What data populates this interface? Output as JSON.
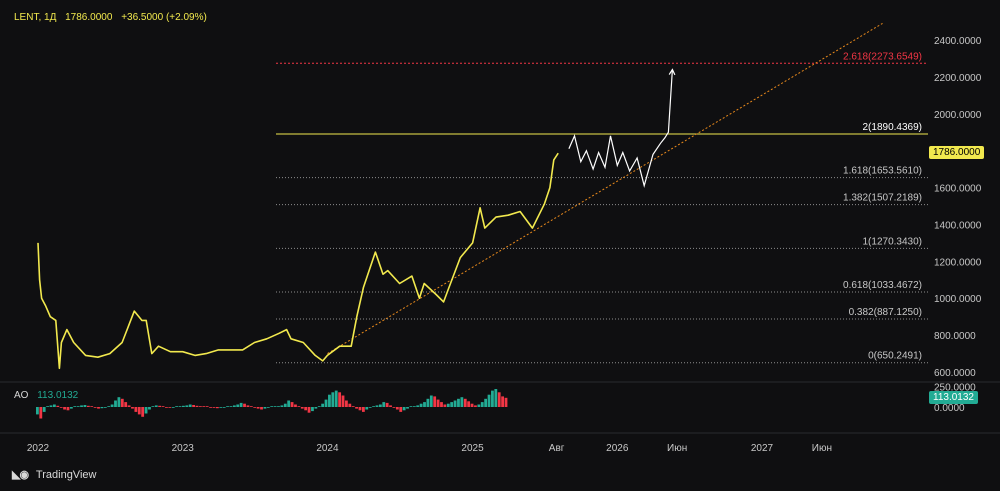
{
  "legend": {
    "symbol": "LENT, 1Д",
    "last": "1786.0000",
    "change": "+36.5000 (+2.09%)"
  },
  "price_tag": {
    "value": "1786.0000",
    "bg": "#f2e94e",
    "fg": "#000000"
  },
  "ao": {
    "name": "AO",
    "value": "113.0132",
    "tag_bg": "#22ab94",
    "up_color": "#22ab94",
    "down_color": "#f23645"
  },
  "branding": {
    "text": "TradingView"
  },
  "colors": {
    "price_line": "#f2e94e",
    "projection": "#ffffff",
    "trend": "#e8891c",
    "fib_line": "#8d8d8d",
    "fib_top": "#f23645",
    "fib_2": "#f2e94e"
  },
  "chart_data": [
    {
      "type": "line",
      "title": "LENT, 1Д",
      "y_axis": {
        "ticks": [
          "2400.0000",
          "2200.0000",
          "2000.0000",
          "1800.0000",
          "1600.0000",
          "1400.0000",
          "1200.0000",
          "1000.0000",
          "800.0000",
          "600.0000"
        ],
        "range": [
          600,
          2400
        ]
      },
      "x_axis": {
        "ticks": [
          "2022",
          "2023",
          "2024",
          "2025",
          "Авг",
          "2026",
          "Июн",
          "2027",
          "Июн"
        ]
      },
      "series": [
        {
          "values": [
            [
              "2022-01-01",
              1300
            ],
            [
              "2022-01-05",
              1100
            ],
            [
              "2022-01-10",
              1000
            ],
            [
              "2022-01-20",
              960
            ],
            [
              "2022-02-01",
              900
            ],
            [
              "2022-02-15",
              880
            ],
            [
              "2022-02-24",
              620
            ],
            [
              "2022-03-01",
              760
            ],
            [
              "2022-03-15",
              830
            ],
            [
              "2022-04-01",
              760
            ],
            [
              "2022-05-01",
              690
            ],
            [
              "2022-06-01",
              680
            ],
            [
              "2022-07-01",
              700
            ],
            [
              "2022-08-01",
              760
            ],
            [
              "2022-09-01",
              930
            ],
            [
              "2022-09-20",
              880
            ],
            [
              "2022-10-01",
              880
            ],
            [
              "2022-10-15",
              700
            ],
            [
              "2022-11-01",
              740
            ],
            [
              "2022-12-01",
              710
            ],
            [
              "2023-01-01",
              710
            ],
            [
              "2023-02-01",
              690
            ],
            [
              "2023-03-01",
              700
            ],
            [
              "2023-04-01",
              720
            ],
            [
              "2023-05-01",
              720
            ],
            [
              "2023-06-01",
              720
            ],
            [
              "2023-07-01",
              760
            ],
            [
              "2023-08-01",
              780
            ],
            [
              "2023-09-01",
              810
            ],
            [
              "2023-09-20",
              830
            ],
            [
              "2023-10-01",
              780
            ],
            [
              "2023-11-01",
              760
            ],
            [
              "2023-12-01",
              690
            ],
            [
              "2023-12-20",
              660
            ],
            [
              "2024-01-01",
              690
            ],
            [
              "2024-02-01",
              740
            ],
            [
              "2024-03-01",
              740
            ],
            [
              "2024-03-15",
              900
            ],
            [
              "2024-04-01",
              1060
            ],
            [
              "2024-04-15",
              1150
            ],
            [
              "2024-05-01",
              1250
            ],
            [
              "2024-05-20",
              1130
            ],
            [
              "2024-06-01",
              1150
            ],
            [
              "2024-07-01",
              1080
            ],
            [
              "2024-08-01",
              1120
            ],
            [
              "2024-08-20",
              1000
            ],
            [
              "2024-09-01",
              1080
            ],
            [
              "2024-10-01",
              1020
            ],
            [
              "2024-10-20",
              980
            ],
            [
              "2024-11-01",
              1050
            ],
            [
              "2024-12-01",
              1220
            ],
            [
              "2025-01-01",
              1300
            ],
            [
              "2025-01-20",
              1490
            ],
            [
              "2025-02-01",
              1380
            ],
            [
              "2025-03-01",
              1440
            ],
            [
              "2025-04-01",
              1450
            ],
            [
              "2025-05-01",
              1470
            ],
            [
              "2025-06-01",
              1380
            ],
            [
              "2025-07-01",
              1510
            ],
            [
              "2025-07-15",
              1600
            ],
            [
              "2025-07-25",
              1750
            ],
            [
              "2025-08-05",
              1786
            ]
          ]
        }
      ],
      "projection": [
        [
          "2025-09-01",
          1810
        ],
        [
          "2025-09-15",
          1880
        ],
        [
          "2025-10-01",
          1740
        ],
        [
          "2025-10-15",
          1800
        ],
        [
          "2025-11-01",
          1700
        ],
        [
          "2025-11-15",
          1790
        ],
        [
          "2025-12-01",
          1710
        ],
        [
          "2025-12-15",
          1880
        ],
        [
          "2026-01-01",
          1720
        ],
        [
          "2026-01-15",
          1790
        ],
        [
          "2026-02-01",
          1690
        ],
        [
          "2026-02-20",
          1760
        ],
        [
          "2026-03-10",
          1610
        ],
        [
          "2026-04-01",
          1780
        ],
        [
          "2026-04-20",
          1840
        ],
        [
          "2026-05-01",
          1870
        ],
        [
          "2026-05-10",
          1900
        ],
        [
          "2026-05-20",
          2240
        ]
      ],
      "trendline": [
        [
          "2024-01-01",
          700
        ],
        [
          "2027-11-01",
          2490
        ]
      ],
      "fib_levels": [
        {
          "label": "0(650.2491)",
          "value": 650.2491
        },
        {
          "label": "0.382(887.1250)",
          "value": 887.125
        },
        {
          "label": "0.618(1033.4672)",
          "value": 1033.4672
        },
        {
          "label": "1(1270.3430)",
          "value": 1270.343
        },
        {
          "label": "1.382(1507.2189)",
          "value": 1507.2189
        },
        {
          "label": "1.618(1653.5610)",
          "value": 1653.561
        },
        {
          "label": "2(1890.4369)",
          "value": 1890.4369
        },
        {
          "label": "2.618(2273.6549)",
          "value": 2273.6549
        }
      ]
    },
    {
      "type": "bar",
      "title": "AO",
      "y_axis": {
        "ticks": [
          "250.0000",
          "0.0000"
        ]
      },
      "values": [
        -90,
        -140,
        -60,
        10,
        20,
        30,
        15,
        -10,
        -30,
        -40,
        -20,
        5,
        10,
        20,
        25,
        15,
        5,
        -10,
        -20,
        -15,
        -5,
        10,
        30,
        80,
        120,
        100,
        60,
        20,
        -20,
        -60,
        -90,
        -120,
        -80,
        -30,
        10,
        20,
        15,
        5,
        -5,
        -10,
        -5,
        5,
        10,
        15,
        20,
        30,
        25,
        15,
        10,
        5,
        0,
        -5,
        -10,
        -15,
        -10,
        -5,
        5,
        10,
        20,
        30,
        50,
        40,
        20,
        5,
        -10,
        -20,
        -30,
        -20,
        -10,
        0,
        5,
        10,
        20,
        40,
        80,
        60,
        30,
        0,
        -20,
        -40,
        -70,
        -50,
        -20,
        10,
        40,
        90,
        150,
        180,
        200,
        180,
        140,
        80,
        40,
        0,
        -20,
        -40,
        -60,
        -30,
        -10,
        10,
        20,
        30,
        60,
        50,
        20,
        -10,
        -30,
        -60,
        -40,
        -20,
        0,
        10,
        20,
        40,
        60,
        100,
        140,
        130,
        90,
        60,
        30,
        40,
        60,
        80,
        100,
        120,
        100,
        70,
        40,
        20,
        30,
        60,
        100,
        150,
        200,
        220,
        180,
        130,
        113
      ]
    }
  ]
}
